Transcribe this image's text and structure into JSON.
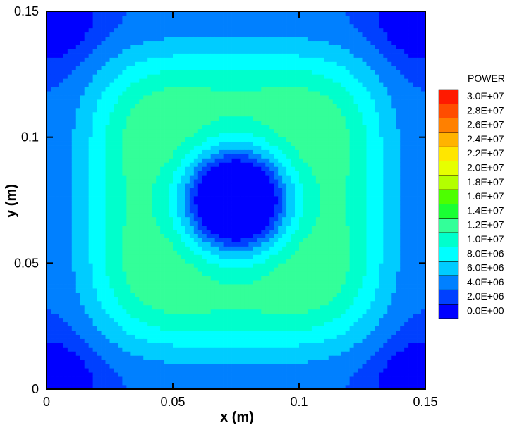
{
  "chart_data": {
    "type": "heatmap",
    "title": "",
    "xlabel": "x (m)",
    "ylabel": "y (m)",
    "xlim": [
      0,
      0.15
    ],
    "ylim": [
      0,
      0.15
    ],
    "x_ticks": [
      "0",
      "0.05",
      "0.1",
      "0.15"
    ],
    "y_ticks": [
      "0",
      "0.05",
      "0.1",
      "0.15"
    ],
    "x_tick_values": [
      0,
      0.05,
      0.1,
      0.15
    ],
    "y_tick_values": [
      0,
      0.05,
      0.1,
      0.15
    ],
    "legend": {
      "title": "POWER",
      "placement": "right",
      "labels": [
        "3.0E+07",
        "2.8E+07",
        "2.6E+07",
        "2.4E+07",
        "2.2E+07",
        "2.0E+07",
        "1.8E+07",
        "1.6E+07",
        "1.4E+07",
        "1.2E+07",
        "1.0E+07",
        "8.0E+06",
        "6.0E+06",
        "4.0E+06",
        "2.0E+06",
        "0.0E+00"
      ],
      "values": [
        30000000,
        28000000,
        26000000,
        24000000,
        22000000,
        20000000,
        18000000,
        16000000,
        14000000,
        12000000,
        10000000,
        8000000,
        6000000,
        4000000,
        2000000,
        0
      ],
      "colors": [
        "#ff1a00",
        "#ff4d00",
        "#ff8000",
        "#ffb300",
        "#ffe600",
        "#e6ff00",
        "#b3ff00",
        "#4dff00",
        "#1aff33",
        "#33ff99",
        "#00ffcc",
        "#00ffff",
        "#00ccff",
        "#0080ff",
        "#0040ff",
        "#0000ff"
      ]
    },
    "field_peak_centers": [
      {
        "x": 0.02,
        "y": 0.075,
        "value": 15000000
      },
      {
        "x": 0.13,
        "y": 0.075,
        "value": 15000000
      },
      {
        "x": 0.075,
        "y": 0.02,
        "value": 15000000
      },
      {
        "x": 0.075,
        "y": 0.13,
        "value": 15000000
      }
    ],
    "field_min_centers": [
      {
        "x": 0.075,
        "y": 0.075,
        "value": 0
      },
      {
        "x": 0,
        "y": 0,
        "value": 0
      },
      {
        "x": 0,
        "y": 0.15,
        "value": 0
      },
      {
        "x": 0.15,
        "y": 0,
        "value": 0
      },
      {
        "x": 0.15,
        "y": 0.15,
        "value": 0
      }
    ]
  }
}
